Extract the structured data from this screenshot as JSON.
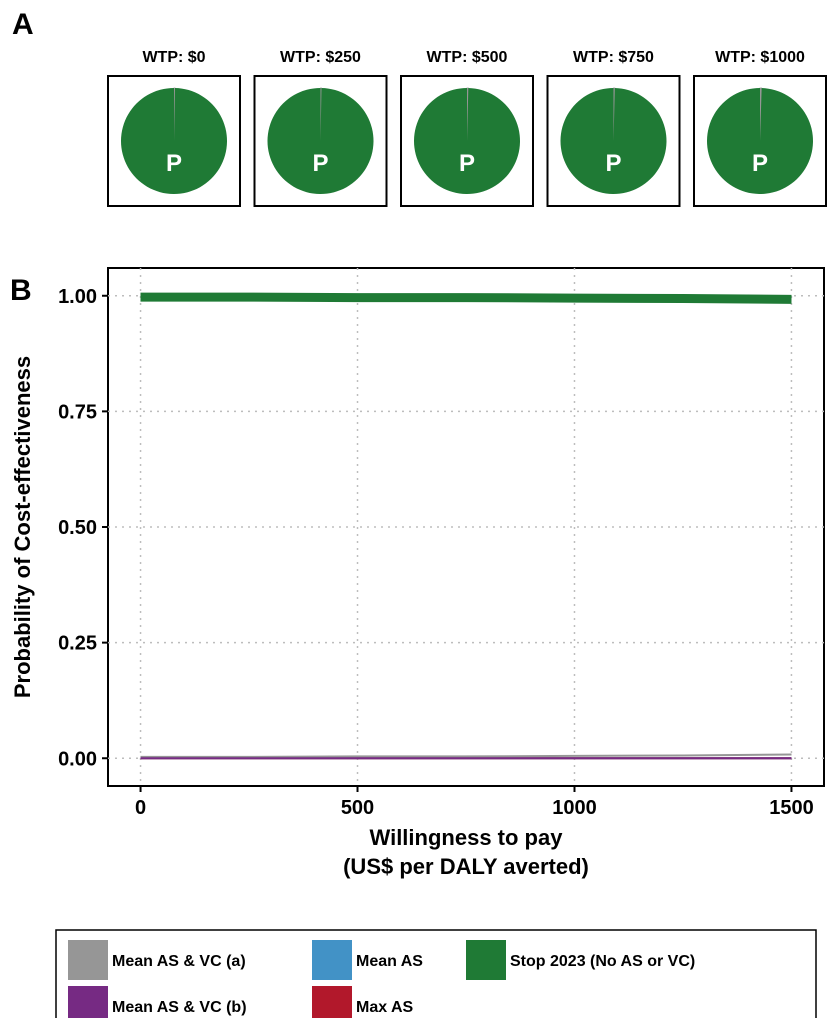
{
  "panels": {
    "a": "A",
    "b": "B"
  },
  "chart_data": [
    {
      "type": "pie",
      "panel": "A",
      "slice_label": "P",
      "series_order": [
        "Mean AS & VC (a)",
        "Mean AS & VC (b)",
        "Mean AS",
        "Max AS",
        "Stop 2023 (No AS or VC)"
      ],
      "pies": [
        {
          "title": "WTP: $0",
          "values": [
            0.003,
            0.0,
            0.0,
            0.0,
            0.997
          ]
        },
        {
          "title": "WTP: $250",
          "values": [
            0.003,
            0.0,
            0.0,
            0.0,
            0.997
          ]
        },
        {
          "title": "WTP: $500",
          "values": [
            0.004,
            0.0,
            0.0,
            0.0,
            0.996
          ]
        },
        {
          "title": "WTP: $750",
          "values": [
            0.004,
            0.0,
            0.0,
            0.0,
            0.996
          ]
        },
        {
          "title": "WTP: $1000",
          "values": [
            0.005,
            0.0,
            0.0,
            0.0,
            0.995
          ]
        }
      ]
    },
    {
      "type": "line",
      "panel": "B",
      "xlabel": [
        "Willingness to pay",
        "(US$ per DALY averted)"
      ],
      "ylabel": "Probability of Cost-effectiveness",
      "xlim": [
        -75,
        1575
      ],
      "ylim": [
        -0.06,
        1.06
      ],
      "xticks": [
        0,
        500,
        1000,
        1500
      ],
      "xtick_labels": [
        "0",
        "500",
        "1000",
        "1500"
      ],
      "yticks": [
        0,
        0.25,
        0.5,
        0.75,
        1.0
      ],
      "ytick_labels": [
        "0.00",
        "0.25",
        "0.50",
        "0.75",
        "1.00"
      ],
      "grid": "dotted",
      "x": [
        0,
        250,
        500,
        750,
        1000,
        1250,
        1500
      ],
      "series": [
        {
          "name": "Stop 2023 (No AS or VC)",
          "values": [
            0.997,
            0.997,
            0.996,
            0.996,
            0.995,
            0.994,
            0.992
          ]
        },
        {
          "name": "Mean AS & VC (a)",
          "values": [
            0.003,
            0.003,
            0.004,
            0.004,
            0.005,
            0.006,
            0.008
          ]
        },
        {
          "name": "Mean AS & VC (b)",
          "values": [
            0.0,
            0.0,
            0.0,
            0.0,
            0.0,
            0.0,
            0.0
          ]
        },
        {
          "name": "Mean AS",
          "values": [
            0.0,
            0.0,
            0.0,
            0.0,
            0.0,
            0.0,
            0.0
          ]
        },
        {
          "name": "Max AS",
          "values": [
            0.0,
            0.0,
            0.0,
            0.0,
            0.0,
            0.0,
            0.0
          ]
        }
      ],
      "legend_position": "bottom"
    }
  ],
  "legend": [
    {
      "label": "Mean AS & VC (a)",
      "color": "#969696"
    },
    {
      "label": "Mean AS",
      "color": "#4292c6"
    },
    {
      "label": "Stop 2023 (No AS or VC)",
      "color": "#1f7a35"
    },
    {
      "label": "Mean AS & VC (b)",
      "color": "#762a83"
    },
    {
      "label": "Max AS",
      "color": "#b2182b"
    }
  ]
}
